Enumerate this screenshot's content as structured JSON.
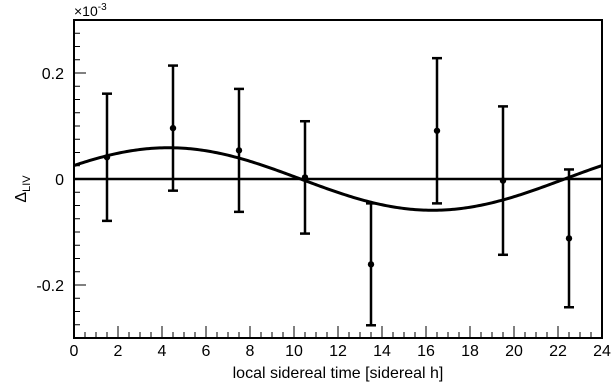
{
  "chart_data": {
    "type": "scatter",
    "title": "",
    "xlabel": "local sidereal time [sidereal h]",
    "ylabel_main": "Δ",
    "ylabel_sub": "LIV",
    "y_multiplier": "×10",
    "y_multiplier_exp": "-3",
    "xlim": [
      0,
      24
    ],
    "ylim": [
      -0.3,
      0.3
    ],
    "x_ticks": [
      0,
      2,
      4,
      6,
      8,
      10,
      12,
      14,
      16,
      18,
      20,
      22,
      24
    ],
    "x_tick_labels": [
      "0",
      "2",
      "4",
      "6",
      "8",
      "10",
      "12",
      "14",
      "16",
      "18",
      "20",
      "22",
      "24"
    ],
    "y_ticks": [
      0.2,
      0,
      -0.2
    ],
    "y_tick_labels": [
      "0.2",
      "0",
      "-0.2"
    ],
    "grid": false,
    "points": {
      "x": [
        1.5,
        4.5,
        7.5,
        10.5,
        13.5,
        16.5,
        19.5,
        22.5
      ],
      "y": [
        0.041,
        0.096,
        0.054,
        0.003,
        -0.161,
        0.091,
        -0.003,
        -0.112
      ],
      "yerr": [
        0.12,
        0.118,
        0.116,
        0.106,
        0.115,
        0.137,
        0.14,
        0.13
      ]
    },
    "fit_curve": {
      "type": "sinusoid",
      "amplitude": 0.059,
      "period": 24,
      "phase_peak_x": 4.3
    },
    "reference_line": {
      "y": 0
    }
  }
}
